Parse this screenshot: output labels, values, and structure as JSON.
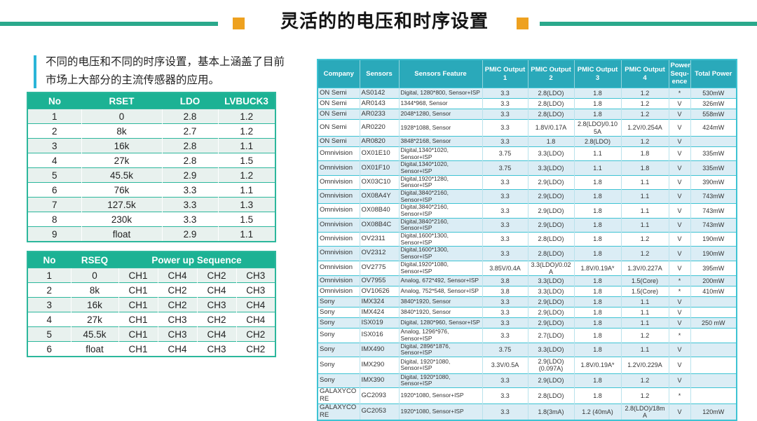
{
  "title": "灵活的的电压和时序设置",
  "intro": {
    "line1": "不同的电压和不同的时序设置，基本上涵盖了目前",
    "line2": "市场上大部分的主流传感器的应用。"
  },
  "colors": {
    "teal_line": "#2aa98c",
    "orange_accent": "#eea11f",
    "intro_bar": "#2ab5d8",
    "left_header_bg": "#1cb294",
    "left_border": "#2cb79c",
    "left_row_alt": "#e8f1ee",
    "right_header_bg": "#2aa9ba",
    "right_border": "#3ec3d3",
    "right_vline": "#b9e2ec",
    "right_row_alt": "#dbedf5"
  },
  "rset_table": {
    "headers": [
      "No",
      "RSET",
      "LDO",
      "LVBUCK3"
    ],
    "rows": [
      [
        "1",
        "0",
        "2.8",
        "1.2"
      ],
      [
        "2",
        "8k",
        "2.7",
        "1.2"
      ],
      [
        "3",
        "16k",
        "2.8",
        "1.1"
      ],
      [
        "4",
        "27k",
        "2.8",
        "1.5"
      ],
      [
        "5",
        "45.5k",
        "2.9",
        "1.2"
      ],
      [
        "6",
        "76k",
        "3.3",
        "1.1"
      ],
      [
        "7",
        "127.5k",
        "3.3",
        "1.3"
      ],
      [
        "8",
        "230k",
        "3.3",
        "1.5"
      ],
      [
        "9",
        "float",
        "2.9",
        "1.1"
      ]
    ]
  },
  "rseq_table": {
    "headers": [
      "No",
      "RSEQ",
      "Power up Sequence"
    ],
    "rows": [
      [
        "1",
        "0",
        "CH1",
        "CH4",
        "CH2",
        "CH3"
      ],
      [
        "2",
        "8k",
        "CH1",
        "CH2",
        "CH4",
        "CH3"
      ],
      [
        "3",
        "16k",
        "CH1",
        "CH2",
        "CH3",
        "CH4"
      ],
      [
        "4",
        "27k",
        "CH1",
        "CH3",
        "CH2",
        "CH4"
      ],
      [
        "5",
        "45.5k",
        "CH1",
        "CH3",
        "CH4",
        "CH2"
      ],
      [
        "6",
        "float",
        "CH1",
        "CH4",
        "CH3",
        "CH2"
      ]
    ]
  },
  "sensor_table": {
    "headers": [
      "Company",
      "Sensors",
      "Sensors Feature",
      "PMIC Output 1",
      "PMIC Output 2",
      "PMIC Output 3",
      "PMIC Output 4",
      "Power Sequ-ence",
      "Total Power"
    ],
    "rows": [
      [
        "ON Semi",
        "AS0142",
        "Digital, 1280*800, Sensor+ISP",
        "3.3",
        "2.8(LDO)",
        "1.8",
        "1.2",
        "*",
        "530mW"
      ],
      [
        "ON Semi",
        "AR0143",
        "1344*968, Sensor",
        "3.3",
        "2.8(LDO)",
        "1.8",
        "1.2",
        "V",
        "326mW"
      ],
      [
        "ON Semi",
        "AR0233",
        "2048*1280, Sensor",
        "3.3",
        "2.8(LDO)",
        "1.8",
        "1.2",
        "V",
        "558mW"
      ],
      [
        "ON Semi",
        "AR0220",
        "1928*1088, Sensor",
        "3.3",
        "1.8V/0.17A",
        "2.8(LDO)/0.105A",
        "1.2V/0.254A",
        "V",
        "424mW"
      ],
      [
        "ON Semi",
        "AR0820",
        "3848*2168, Sensor",
        "3.3",
        "1.8",
        "2.8(LDO)",
        "1.2",
        "V",
        ""
      ],
      [
        "Omnivision",
        "OX01E10",
        "Digital,1340*1020, Sensor+ISP",
        "3.75",
        "3.3(LDO)",
        "1.1",
        "1.8",
        "V",
        "335mW"
      ],
      [
        "Omnivision",
        "OX01F10",
        "Digital,1340*1020, Sensor+ISP",
        "3.75",
        "3.3(LDO)",
        "1.1",
        "1.8",
        "V",
        "335mW"
      ],
      [
        "Omnivision",
        "OX03C10",
        "Digital,1920*1280, Sensor+ISP",
        "3.3",
        "2.9(LDO)",
        "1.8",
        "1.1",
        "V",
        "390mW"
      ],
      [
        "Omnivision",
        "OX08A4Y",
        "Digital,3840*2160, Sensor+ISP",
        "3.3",
        "2.9(LDO)",
        "1.8",
        "1.1",
        "V",
        "743mW"
      ],
      [
        "Omnivision",
        "OX08B40",
        "Digital,3840*2160, Sensor+ISP",
        "3.3",
        "2.9(LDO)",
        "1.8",
        "1.1",
        "V",
        "743mW"
      ],
      [
        "Omnivision",
        "OX08B4C",
        "Digital,3840*2160, Sensor+ISP",
        "3.3",
        "2.9(LDO)",
        "1.8",
        "1.1",
        "V",
        "743mW"
      ],
      [
        "Omnivision",
        "OV2311",
        "Digital,1600*1300, Sensor+ISP",
        "3.3",
        "2.8(LDO)",
        "1.8",
        "1.2",
        "V",
        "190mW"
      ],
      [
        "Omnivision",
        "OV2312",
        "Digital,1600*1300, Sensor+ISP",
        "3.3",
        "2.8(LDO)",
        "1.8",
        "1.2",
        "V",
        "190mW"
      ],
      [
        "Omnivision",
        "OV2775",
        "Digital,1920*1080, Sensor+ISP",
        "3.85V/0.4A",
        "3.3(LDO)/0.02A",
        "1.8V/0.19A*",
        "1.3V/0.227A",
        "V",
        "395mW"
      ],
      [
        "Omnivision",
        "OV7955",
        "Analog, 672*492, Sensor+ISP",
        "3.8",
        "3.3(LDO)",
        "1.8",
        "1.5(Core)",
        "*",
        "200mW"
      ],
      [
        "Omnivision",
        "OV10626",
        "Analog, 752*548, Sensor+ISP",
        "3.8",
        "3.3(LDO)",
        "1.8",
        "1.5(Core)",
        "*",
        "410mW"
      ],
      [
        "Sony",
        "IMX324",
        "3840*1920, Sensor",
        "3.3",
        "2.9(LDO)",
        "1.8",
        "1.1",
        "V",
        ""
      ],
      [
        "Sony",
        "IMX424",
        "3840*1920, Sensor",
        "3.3",
        "2.9(LDO)",
        "1.8",
        "1.1",
        "V",
        ""
      ],
      [
        "Sony",
        "ISX019",
        "Digital, 1280*960, Sensor+ISP",
        "3.3",
        "2.9(LDO)",
        "1.8",
        "1.1",
        "V",
        "250 mW"
      ],
      [
        "Sony",
        "ISX016",
        "Analog, 1296*976, Sensor+ISP",
        "3.3",
        "2.7(LDO)",
        "1.8",
        "1.2",
        "*",
        ""
      ],
      [
        "Sony",
        "IMX490",
        "Digital, 2896*1876, Sensor+ISP",
        "3.75",
        "3.3(LDO)",
        "1.8",
        "1.1",
        "V",
        ""
      ],
      [
        "Sony",
        "IMX290",
        "Digital, 1920*1080, Sensor+ISP",
        "3.3V/0.5A",
        "2.9(LDO) (0.097A)",
        "1.8V/0.19A*",
        "1.2V/0.229A",
        "V",
        ""
      ],
      [
        "Sony",
        "IMX390",
        "Digital, 1920*1080, Sensor+ISP",
        "3.3",
        "2.9(LDO)",
        "1.8",
        "1.2",
        "V",
        ""
      ],
      [
        "GALAXYCORE",
        "GC2093",
        "1920*1080, Sensor+ISP",
        "3.3",
        "2.8(LDO)",
        "1.8",
        "1.2",
        "*",
        ""
      ],
      [
        "GALAXYCORE",
        "GC2053",
        "1920*1080, Sensor+ISP",
        "3.3",
        "1.8(3mA)",
        "1.2 (40mA)",
        "2.8(LDO)/18mA",
        "V",
        "120mW"
      ]
    ]
  }
}
